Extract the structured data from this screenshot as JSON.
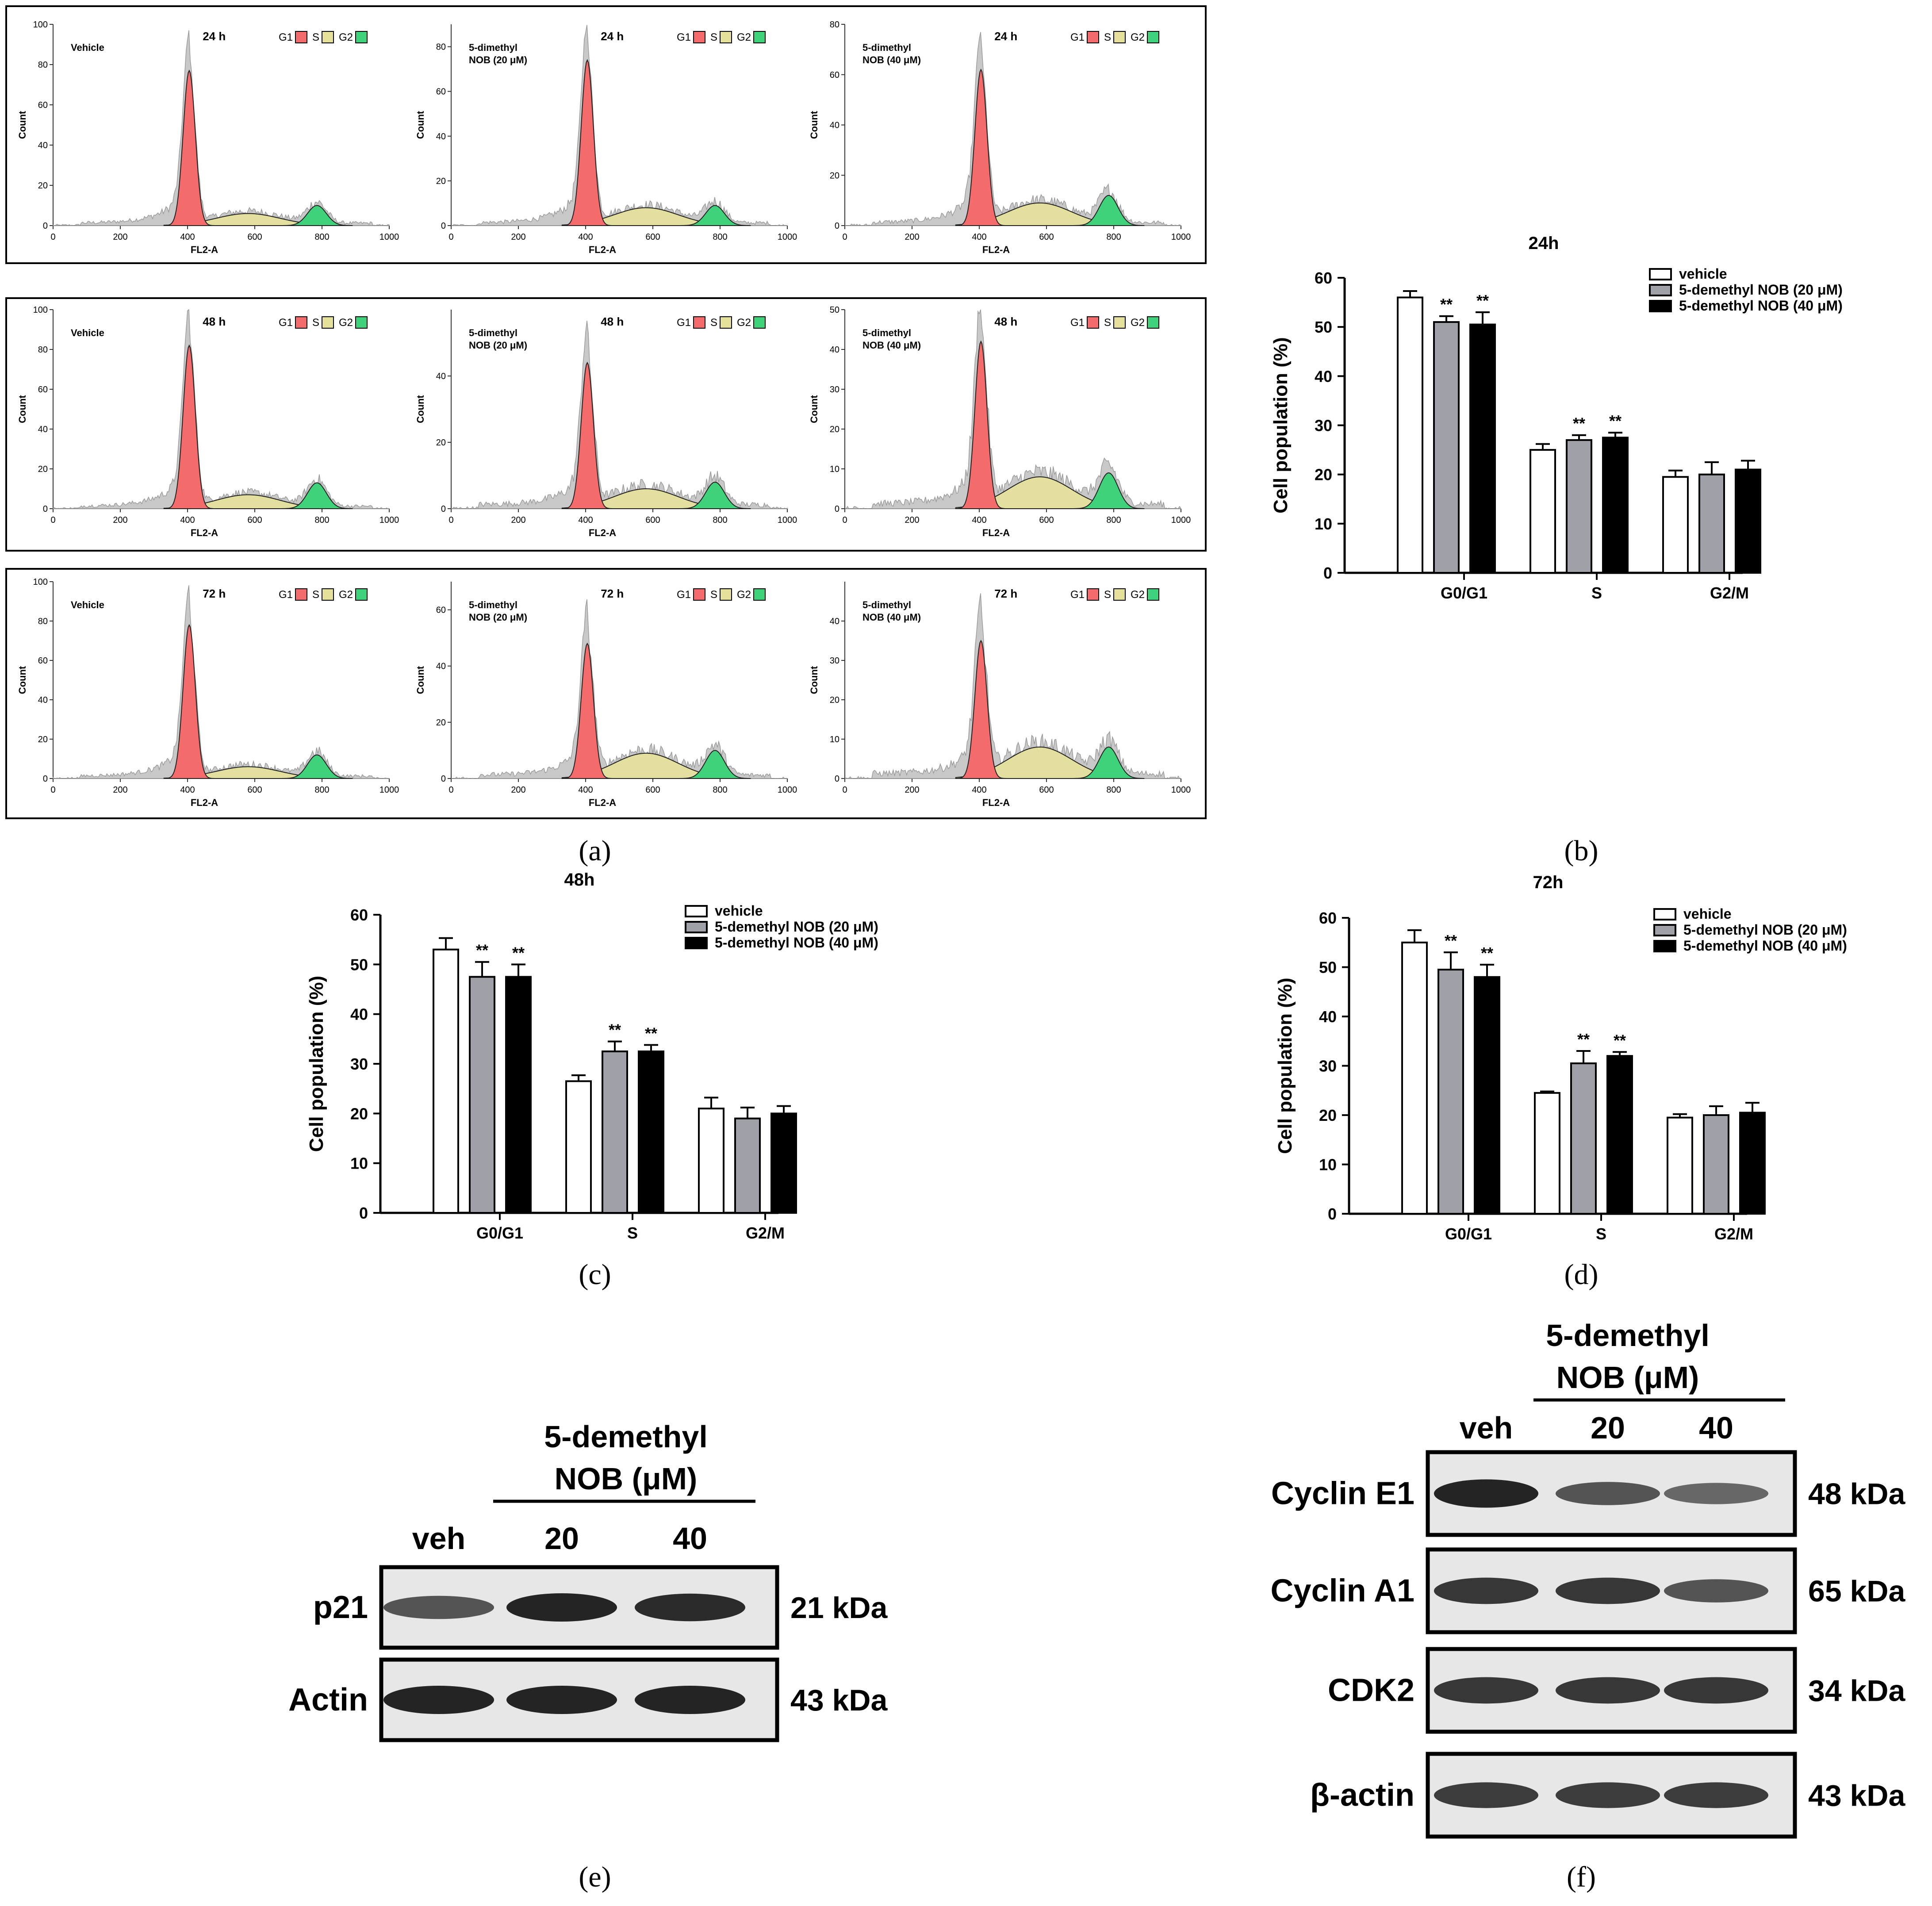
{
  "figure": {
    "panel_labels": {
      "a": "(a)",
      "b": "(b)",
      "c": "(c)",
      "d": "(d)",
      "e": "(e)",
      "f": "(f)"
    }
  },
  "colors": {
    "g1": "#f36b6b",
    "s": "#e6e19a",
    "g2": "#3fd27a",
    "histogram": "#c8c8c8",
    "vehicle_bar": "#ffffff",
    "dose20_bar": "#a0a0a8",
    "dose40_bar": "#000000"
  },
  "histograms": {
    "x_label": "FL2-A",
    "y_label": "Count",
    "x_ticks": [
      "0",
      "200",
      "400",
      "600",
      "800",
      "1000"
    ],
    "legend": {
      "g1": "G1",
      "s": "S",
      "g2": "G2"
    },
    "rows": [
      {
        "time": "24 h",
        "panels": [
          {
            "name": [
              "Vehicle"
            ],
            "yticks": [
              "0",
              "20",
              "40",
              "60",
              "80",
              "100"
            ],
            "ymax": 100,
            "g1_peak": 77,
            "tall": 93,
            "s_peak": 6,
            "g2_peak": 10
          },
          {
            "name": [
              "5-dimethyl",
              "NOB (20 μM)"
            ],
            "yticks": [
              "0",
              "20",
              "40",
              "60",
              "80"
            ],
            "ymax": 90,
            "g1_peak": 74,
            "tall": 85,
            "s_peak": 8,
            "g2_peak": 9
          },
          {
            "name": [
              "5-dimethyl",
              "NOB (40 μM)"
            ],
            "yticks": [
              "0",
              "20",
              "40",
              "60",
              "80"
            ],
            "ymax": 80,
            "g1_peak": 62,
            "tall": 73,
            "s_peak": 9,
            "g2_peak": 12
          }
        ]
      },
      {
        "time": "48 h",
        "panels": [
          {
            "name": [
              "Vehicle"
            ],
            "yticks": [
              "0",
              "20",
              "40",
              "60",
              "80",
              "100"
            ],
            "ymax": 100,
            "g1_peak": 82,
            "tall": 95,
            "s_peak": 7,
            "g2_peak": 13
          },
          {
            "name": [
              "5-dimethyl",
              "NOB (20 μM)"
            ],
            "yticks": [
              "0",
              "20",
              "40"
            ],
            "ymax": 60,
            "g1_peak": 44,
            "tall": 55,
            "s_peak": 6,
            "g2_peak": 8
          },
          {
            "name": [
              "5-dimethyl",
              "NOB (40 μM)"
            ],
            "yticks": [
              "0",
              "10",
              "20",
              "30",
              "40",
              "50"
            ],
            "ymax": 50,
            "g1_peak": 42,
            "tall": 49,
            "s_peak": 8,
            "g2_peak": 9
          }
        ]
      },
      {
        "time": "72 h",
        "panels": [
          {
            "name": [
              "Vehicle"
            ],
            "yticks": [
              "0",
              "20",
              "40",
              "60",
              "80",
              "100"
            ],
            "ymax": 100,
            "g1_peak": 78,
            "tall": 90,
            "s_peak": 6,
            "g2_peak": 12
          },
          {
            "name": [
              "5-dimethyl",
              "NOB (20 μM)"
            ],
            "yticks": [
              "0",
              "20",
              "40",
              "60"
            ],
            "ymax": 70,
            "g1_peak": 48,
            "tall": 57,
            "s_peak": 9,
            "g2_peak": 10
          },
          {
            "name": [
              "5-dimethyl",
              "NOB (40 μM)"
            ],
            "yticks": [
              "0",
              "10",
              "20",
              "30",
              "40"
            ],
            "ymax": 50,
            "g1_peak": 35,
            "tall": 46,
            "s_peak": 8,
            "g2_peak": 8
          }
        ]
      }
    ]
  },
  "chart_data": [
    {
      "type": "bar",
      "title": "24h",
      "categories": [
        "G0/G1",
        "S",
        "G2/M"
      ],
      "series": [
        {
          "name": "vehicle",
          "values": [
            56.0,
            25.0,
            19.5
          ],
          "errors": [
            1.3,
            1.2,
            1.3
          ],
          "sig": [
            "",
            "",
            ""
          ]
        },
        {
          "name": "5-demethyl NOB (20 μM)",
          "values": [
            51.0,
            27.0,
            20.0
          ],
          "errors": [
            1.2,
            1.0,
            2.5
          ],
          "sig": [
            "**",
            "**",
            ""
          ]
        },
        {
          "name": "5-demethyl NOB (40 μM)",
          "values": [
            50.5,
            27.5,
            21.0
          ],
          "errors": [
            2.5,
            1.0,
            1.8
          ],
          "sig": [
            "**",
            "**",
            ""
          ]
        }
      ],
      "xlabel": "",
      "ylabel": "Cell population (%)",
      "ylim": [
        0,
        60
      ],
      "yticks": [
        "0",
        "10",
        "20",
        "30",
        "40",
        "50",
        "60"
      ]
    },
    {
      "type": "bar",
      "title": "48h",
      "categories": [
        "G0/G1",
        "S",
        "G2/M"
      ],
      "series": [
        {
          "name": "vehicle",
          "values": [
            53.0,
            26.5,
            21.0
          ],
          "errors": [
            2.3,
            1.2,
            2.2
          ],
          "sig": [
            "",
            "",
            ""
          ]
        },
        {
          "name": "5-demethyl NOB (20 μM)",
          "values": [
            47.5,
            32.5,
            19.0
          ],
          "errors": [
            3.0,
            2.0,
            2.2
          ],
          "sig": [
            "**",
            "**",
            ""
          ]
        },
        {
          "name": "5-demethyl NOB (40 μM)",
          "values": [
            47.5,
            32.5,
            20.0
          ],
          "errors": [
            2.5,
            1.3,
            1.5
          ],
          "sig": [
            "**",
            "**",
            ""
          ]
        }
      ],
      "xlabel": "",
      "ylabel": "Cell population (%)",
      "ylim": [
        0,
        60
      ],
      "yticks": [
        "0",
        "10",
        "20",
        "30",
        "40",
        "50",
        "60"
      ]
    },
    {
      "type": "bar",
      "title": "72h",
      "categories": [
        "G0/G1",
        "S",
        "G2/M"
      ],
      "series": [
        {
          "name": "vehicle",
          "values": [
            55.0,
            24.5,
            19.5
          ],
          "errors": [
            2.5,
            0.3,
            0.7
          ],
          "sig": [
            "",
            "",
            ""
          ]
        },
        {
          "name": "5-demethyl NOB (20 μM)",
          "values": [
            49.5,
            30.5,
            20.0
          ],
          "errors": [
            3.5,
            2.5,
            1.8
          ],
          "sig": [
            "**",
            "**",
            ""
          ]
        },
        {
          "name": "5-demethyl NOB (40 μM)",
          "values": [
            48.0,
            32.0,
            20.5
          ],
          "errors": [
            2.5,
            0.8,
            2.0
          ],
          "sig": [
            "**",
            "**",
            ""
          ]
        }
      ],
      "xlabel": "",
      "ylabel": "Cell population (%)",
      "ylim": [
        0,
        60
      ],
      "yticks": [
        "0",
        "10",
        "20",
        "30",
        "40",
        "50",
        "60"
      ]
    }
  ],
  "blot_e": {
    "header": [
      "5-demethyl",
      "NOB (μM)"
    ],
    "lanes": [
      "veh",
      "20",
      "40"
    ],
    "rows": [
      {
        "label": "p21",
        "kda": "21 kDa",
        "intensity": [
          0.6,
          1.0,
          0.95
        ]
      },
      {
        "label": "Actin",
        "kda": "43 kDa",
        "intensity": [
          1.0,
          1.0,
          1.0
        ]
      }
    ]
  },
  "blot_f": {
    "header": [
      "5-demethyl",
      "NOB (μM)"
    ],
    "lanes": [
      "veh",
      "20",
      "40"
    ],
    "rows": [
      {
        "label": "Cyclin E1",
        "kda": "48 kDa",
        "intensity": [
          1.0,
          0.6,
          0.45
        ]
      },
      {
        "label": "Cyclin A1",
        "kda": "65 kDa",
        "intensity": [
          0.85,
          0.85,
          0.6
        ]
      },
      {
        "label": "CDK2",
        "kda": "34 kDa",
        "intensity": [
          0.85,
          0.85,
          0.85
        ]
      },
      {
        "label": "β-actin",
        "kda": "43 kDa",
        "intensity": [
          0.8,
          0.8,
          0.8
        ]
      }
    ]
  }
}
